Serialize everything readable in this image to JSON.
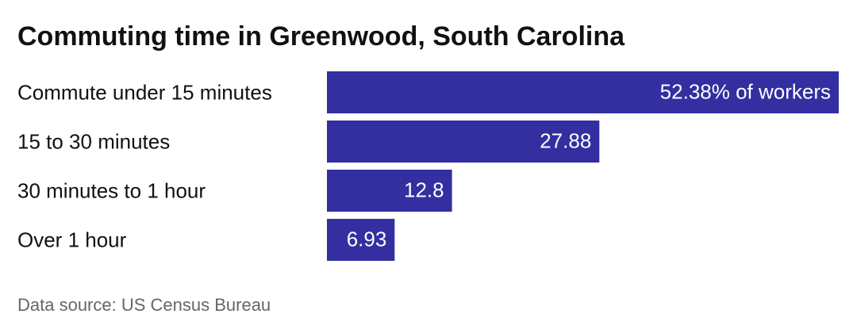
{
  "chart_data": {
    "type": "bar",
    "orientation": "horizontal",
    "title": "Commuting time in Greenwood, South Carolina",
    "categories": [
      "Commute under 15 minutes",
      "15 to 30 minutes",
      "30 minutes to 1 hour",
      "Over 1 hour"
    ],
    "values": [
      52.38,
      27.88,
      12.8,
      6.93
    ],
    "value_labels": [
      "52.38% of workers",
      "27.88",
      "12.8",
      "6.93"
    ],
    "color": "#332fa1",
    "source": "Data source: US Census Bureau"
  }
}
